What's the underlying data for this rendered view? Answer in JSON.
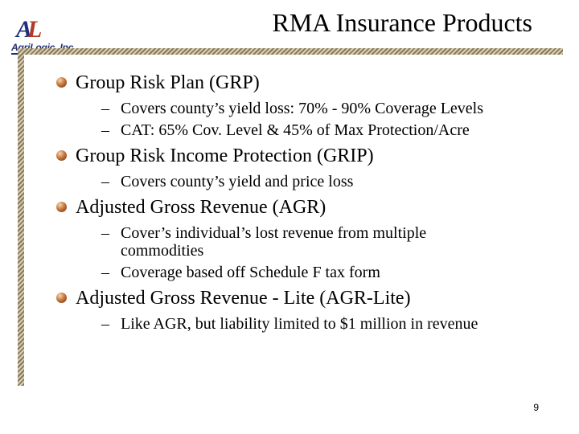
{
  "logo": {
    "mark_a": "A",
    "mark_l": "L",
    "text": "AgriLogic, Inc."
  },
  "title": "RMA Insurance Products",
  "bullets": [
    {
      "text": "Group Risk Plan (GRP)",
      "subs": [
        "Covers county’s yield loss: 70% - 90% Coverage Levels",
        "CAT: 65% Cov. Level & 45% of Max Protection/Acre"
      ]
    },
    {
      "text": "Group Risk Income Protection (GRIP)",
      "subs": [
        "Covers county’s yield and price loss"
      ]
    },
    {
      "text": "Adjusted Gross Revenue (AGR)",
      "subs": [
        "Cover’s individual’s lost revenue from multiple commodities",
        "Coverage based off Schedule F tax form"
      ]
    },
    {
      "text": "Adjusted Gross Revenue - Lite (AGR-Lite)",
      "subs": [
        "Like AGR, but liability limited to $1 million in revenue"
      ]
    }
  ],
  "dash": "–",
  "page_number": "9"
}
